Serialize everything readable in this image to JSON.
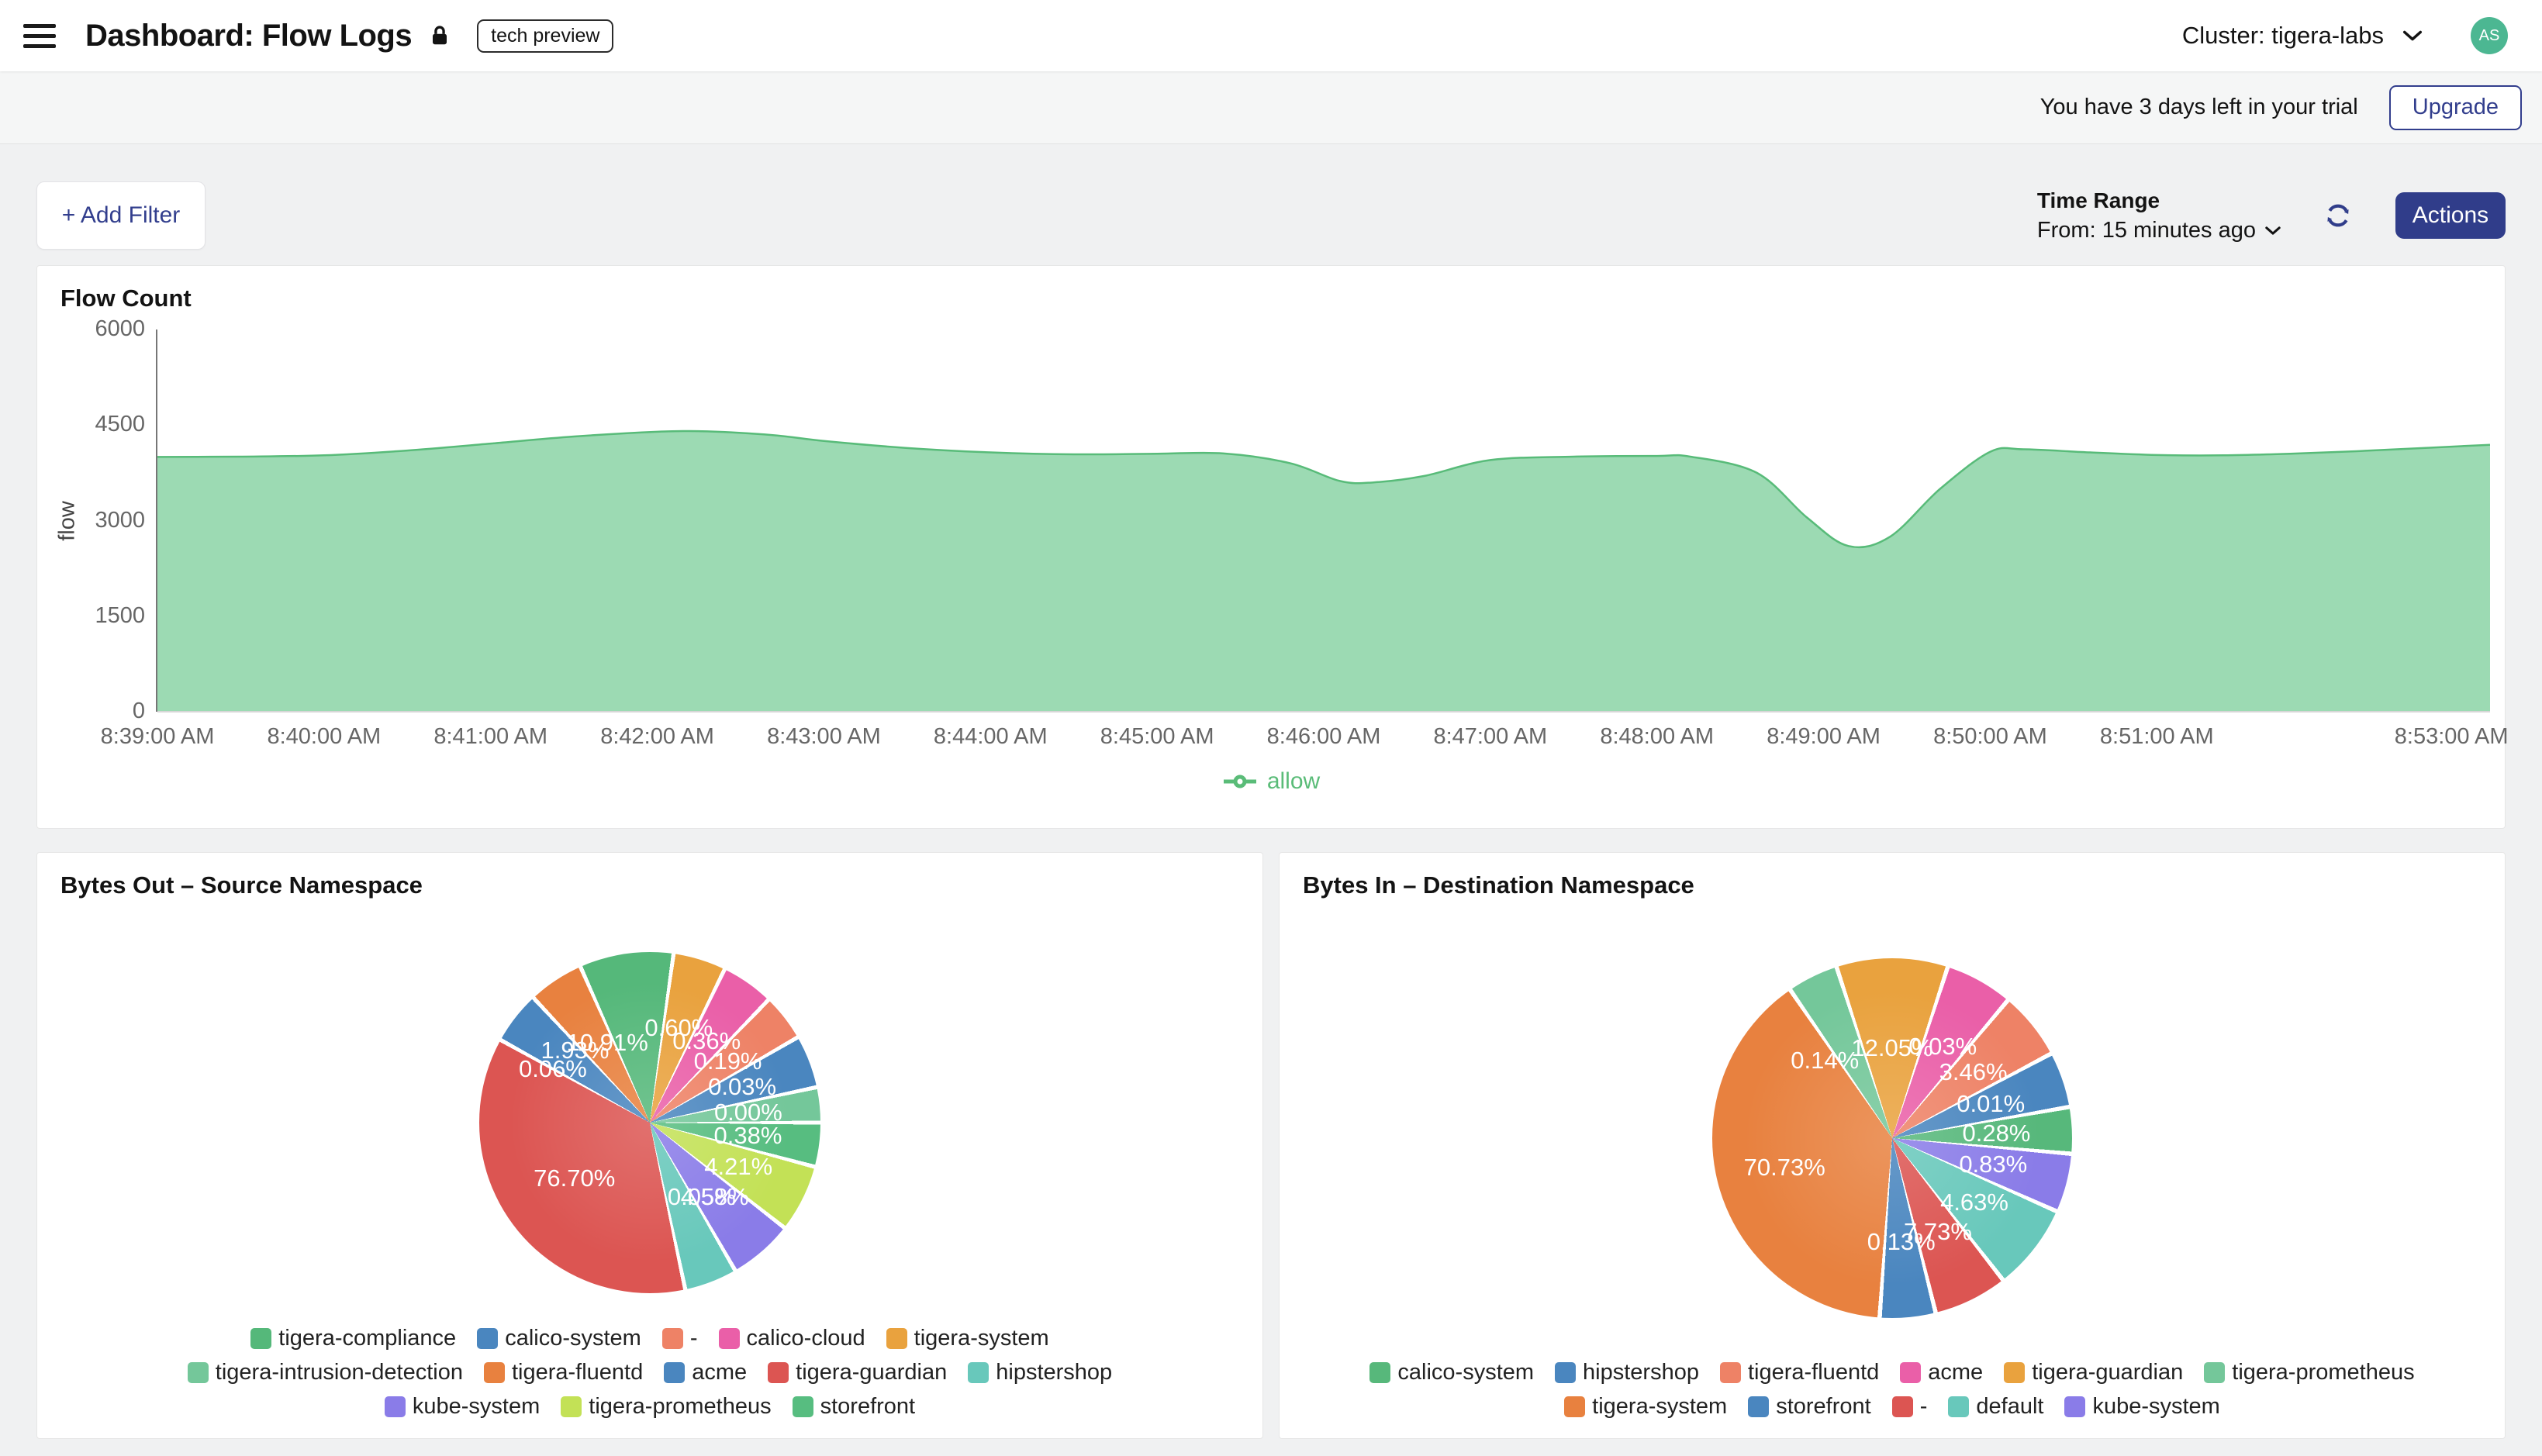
{
  "header": {
    "title": "Dashboard: Flow Logs",
    "badge": "tech preview",
    "cluster_label": "Cluster: tigera-labs",
    "avatar_initials": "AS"
  },
  "trial_bar": {
    "message": "You have 3 days left in your trial",
    "upgrade_label": "Upgrade"
  },
  "toolbar": {
    "add_filter_label": "+ Add Filter",
    "time_range_label": "Time Range",
    "time_range_value": "From: 15 minutes ago",
    "actions_label": "Actions"
  },
  "colors": {
    "accent_navy": "#303d8a",
    "avatar_green": "#4cb792",
    "area_fill": "#9cdab3",
    "area_line": "#58bb79",
    "page_bg": "#f0f1f2"
  },
  "chart_data": [
    {
      "type": "area",
      "title": "Flow Count",
      "ylabel": "flow",
      "ylim": [
        0,
        6000
      ],
      "y_ticks": [
        0,
        1500,
        3000,
        4500,
        6000
      ],
      "x_range_minutes": [
        0,
        14
      ],
      "grid": false,
      "legend_position": "bottom",
      "x_ticks": [
        {
          "minute": 0,
          "label": "8:39:00 AM"
        },
        {
          "minute": 1,
          "label": "8:40:00 AM"
        },
        {
          "minute": 2,
          "label": "8:41:00 AM"
        },
        {
          "minute": 3,
          "label": "8:42:00 AM"
        },
        {
          "minute": 4,
          "label": "8:43:00 AM"
        },
        {
          "minute": 5,
          "label": "8:44:00 AM"
        },
        {
          "minute": 6,
          "label": "8:45:00 AM"
        },
        {
          "minute": 7,
          "label": "8:46:00 AM"
        },
        {
          "minute": 8,
          "label": "8:47:00 AM"
        },
        {
          "minute": 9,
          "label": "8:48:00 AM"
        },
        {
          "minute": 10,
          "label": "8:49:00 AM"
        },
        {
          "minute": 11,
          "label": "8:50:00 AM"
        },
        {
          "minute": 12,
          "label": "8:51:00 AM"
        },
        {
          "minute": 14,
          "label": "8:53:00 AM"
        }
      ],
      "series": [
        {
          "name": "allow",
          "color": "#58bb79",
          "fill": "#9cdab3",
          "points": [
            [
              0,
              4000
            ],
            [
              0.5,
              4005
            ],
            [
              1,
              4025
            ],
            [
              1.5,
              4100
            ],
            [
              2,
              4210
            ],
            [
              2.5,
              4320
            ],
            [
              3,
              4395
            ],
            [
              3.3,
              4400
            ],
            [
              3.7,
              4340
            ],
            [
              4,
              4250
            ],
            [
              4.5,
              4140
            ],
            [
              5,
              4070
            ],
            [
              5.5,
              4040
            ],
            [
              6,
              4050
            ],
            [
              6.4,
              4055
            ],
            [
              6.8,
              3900
            ],
            [
              7.1,
              3620
            ],
            [
              7.3,
              3600
            ],
            [
              7.6,
              3700
            ],
            [
              8,
              3950
            ],
            [
              8.5,
              4005
            ],
            [
              9,
              4015
            ],
            [
              9.2,
              4005
            ],
            [
              9.6,
              3750
            ],
            [
              9.9,
              3050
            ],
            [
              10.15,
              2600
            ],
            [
              10.4,
              2750
            ],
            [
              10.7,
              3500
            ],
            [
              11,
              4080
            ],
            [
              11.2,
              4120
            ],
            [
              11.6,
              4070
            ],
            [
              12,
              4030
            ],
            [
              12.4,
              4025
            ],
            [
              12.8,
              4050
            ],
            [
              13.2,
              4090
            ],
            [
              13.6,
              4140
            ],
            [
              14,
              4190
            ]
          ]
        }
      ]
    },
    {
      "type": "pie",
      "title": "Bytes Out – Source Namespace",
      "start_angle": -24,
      "slices": [
        {
          "name": "tigera-compliance",
          "label": "10.91%",
          "value_pct": 10.91,
          "color": "#55b87a",
          "span": 32,
          "la": -28,
          "lr": 0.53
        },
        {
          "name": "tigera-system",
          "label": "0.60%",
          "value_pct": 0.6,
          "color": "#e9a23e",
          "span": 18
        },
        {
          "name": "calico-cloud",
          "label": "0.36%",
          "value_pct": 0.36,
          "color": "#ea5fa8",
          "span": 18
        },
        {
          "name": "-",
          "label": "0.19%",
          "value_pct": 0.19,
          "color": "#ee8266",
          "span": 16
        },
        {
          "name": "acme",
          "label": "0.03%",
          "value_pct": 0.03,
          "color": "#4a86bf",
          "span": 18
        },
        {
          "name": "tigera-intrusion-detection",
          "label": "0.00%",
          "value_pct": 0.0,
          "color": "#74c79a",
          "span": 12
        },
        {
          "name": "storefront",
          "label": "0.38%",
          "value_pct": 0.38,
          "color": "#57bd80",
          "span": 15
        },
        {
          "name": "tigera-prometheus",
          "label": "4.21%",
          "value_pct": 4.21,
          "color": "#c3e156",
          "span": 23
        },
        {
          "name": "kube-system",
          "label": "4.58%",
          "value_pct": 4.58,
          "color": "#8a7ce8",
          "span": 22
        },
        {
          "name": "hipstershop",
          "label": "0.05%",
          "value_pct": 0.05,
          "color": "#68c8bb",
          "span": 18,
          "la": 145,
          "lr": 0.53
        },
        {
          "name": "tigera-guardian",
          "label": "76.70%",
          "value_pct": 76.7,
          "color": "#dc5552",
          "span": 131,
          "lr": 0.55
        },
        {
          "name": "calico-system",
          "label": "1.93%",
          "value_pct": 1.93,
          "color": "#4a86bf",
          "span": 18,
          "la": -46,
          "lr": 0.61
        },
        {
          "name": "tigera-fluentd",
          "label": "0.06%",
          "value_pct": 0.06,
          "color": "#e8813f",
          "span": 19,
          "la": -61,
          "lr": 0.65
        }
      ],
      "legend_rows": [
        [
          "tigera-compliance",
          "calico-system",
          "-",
          "calico-cloud",
          "tigera-system"
        ],
        [
          "tigera-intrusion-detection",
          "tigera-fluentd",
          "acme",
          "tigera-guardian",
          "hipstershop"
        ],
        [
          "kube-system",
          "tigera-prometheus",
          "storefront"
        ]
      ],
      "legend_colors": {
        "tigera-compliance": "#55b87a",
        "calico-system": "#4a86bf",
        "-": "#ee8266",
        "calico-cloud": "#ea5fa8",
        "tigera-system": "#e9a23e",
        "tigera-intrusion-detection": "#74c79a",
        "tigera-fluentd": "#e8813f",
        "acme": "#4a86bf",
        "tigera-guardian": "#dc5552",
        "hipstershop": "#68c8bb",
        "kube-system": "#8a7ce8",
        "tigera-prometheus": "#c3e156",
        "storefront": "#57bd80"
      }
    },
    {
      "type": "pie",
      "title": "Bytes In – Destination Namespace",
      "start_angle": -18,
      "slices": [
        {
          "name": "tigera-guardian",
          "label": "12.05%",
          "value_pct": 12.05,
          "color": "#e9a23e",
          "span": 36,
          "lr": 0.5
        },
        {
          "name": "acme",
          "label": "0.03%",
          "value_pct": 0.03,
          "color": "#ea5fa8",
          "span": 22
        },
        {
          "name": "tigera-fluentd",
          "label": "3.46%",
          "value_pct": 3.46,
          "color": "#ee8266",
          "span": 22
        },
        {
          "name": "hipstershop",
          "label": "0.01%",
          "value_pct": 0.01,
          "color": "#4a86bf",
          "span": 18
        },
        {
          "name": "calico-system",
          "label": "0.28%",
          "value_pct": 0.28,
          "color": "#57b87b",
          "span": 15
        },
        {
          "name": "kube-system",
          "label": "0.83%",
          "value_pct": 0.83,
          "color": "#8a7ce8",
          "span": 19
        },
        {
          "name": "default",
          "label": "4.63%",
          "value_pct": 4.63,
          "color": "#68c8bb",
          "span": 28
        },
        {
          "name": "-",
          "label": "7.73%",
          "value_pct": 7.73,
          "color": "#dc5552",
          "span": 24
        },
        {
          "name": "storefront",
          "label": "0.13%",
          "value_pct": 0.13,
          "color": "#4a86bf",
          "span": 18
        },
        {
          "name": "tigera-system",
          "label": "70.73%",
          "value_pct": 70.73,
          "color": "#e8813f",
          "span": 141.5,
          "lr": 0.62
        },
        {
          "name": "tigera-prometheus",
          "label": "0.14%",
          "value_pct": 0.14,
          "color": "#74c79a",
          "span": 16.5,
          "la": -41,
          "lr": 0.57
        }
      ],
      "legend_rows": [
        [
          "calico-system",
          "hipstershop",
          "tigera-fluentd",
          "acme",
          "tigera-guardian",
          "tigera-prometheus"
        ],
        [
          "tigera-system",
          "storefront",
          "-",
          "default",
          "kube-system"
        ]
      ],
      "legend_colors": {
        "calico-system": "#57b87b",
        "hipstershop": "#4a86bf",
        "tigera-fluentd": "#ee8266",
        "acme": "#ea5fa8",
        "tigera-guardian": "#e9a23e",
        "tigera-prometheus": "#74c79a",
        "tigera-system": "#e8813f",
        "storefront": "#4a86bf",
        "-": "#dc5552",
        "default": "#68c8bb",
        "kube-system": "#8a7ce8"
      }
    }
  ]
}
